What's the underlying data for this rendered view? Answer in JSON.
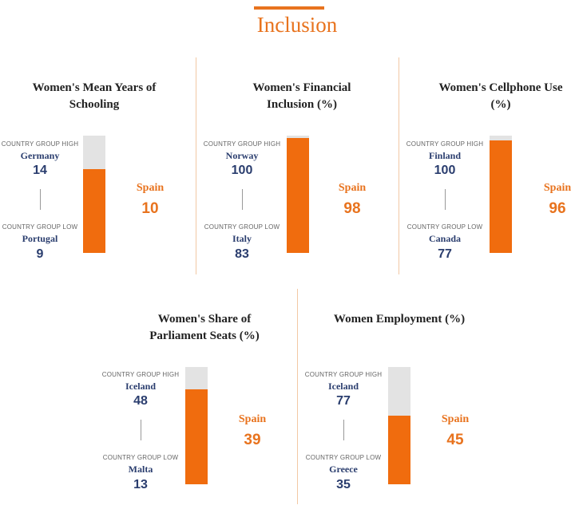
{
  "title": "Inclusion",
  "colors": {
    "accent": "#e8731e",
    "bar": "#f06c0e",
    "track": "#e3e3e3",
    "navy": "#2a3d6e"
  },
  "chart_data": [
    {
      "type": "bar",
      "title": "Women's Mean Years of Schooling",
      "high": {
        "label": "COUNTRY GROUP HIGH",
        "country": "Germany",
        "value": 14
      },
      "low": {
        "label": "COUNTRY GROUP LOW",
        "country": "Portugal",
        "value": 9
      },
      "spain": {
        "label": "Spain",
        "value": 10
      }
    },
    {
      "type": "bar",
      "title": "Women's Financial Inclusion (%)",
      "high": {
        "label": "COUNTRY GROUP HIGH",
        "country": "Norway",
        "value": 100
      },
      "low": {
        "label": "COUNTRY GROUP LOW",
        "country": "Italy",
        "value": 83
      },
      "spain": {
        "label": "Spain",
        "value": 98
      }
    },
    {
      "type": "bar",
      "title": "Women's Cellphone Use (%)",
      "high": {
        "label": "COUNTRY GROUP HIGH",
        "country": "Finland",
        "value": 100
      },
      "low": {
        "label": "COUNTRY GROUP LOW",
        "country": "Canada",
        "value": 77
      },
      "spain": {
        "label": "Spain",
        "value": 96
      }
    },
    {
      "type": "bar",
      "title": "Women's Share of Parliament Seats (%)",
      "high": {
        "label": "COUNTRY GROUP HIGH",
        "country": "Iceland",
        "value": 48
      },
      "low": {
        "label": "COUNTRY GROUP LOW",
        "country": "Malta",
        "value": 13
      },
      "spain": {
        "label": "Spain",
        "value": 39
      }
    },
    {
      "type": "bar",
      "title": "Women Employment (%)",
      "high": {
        "label": "COUNTRY GROUP HIGH",
        "country": "Iceland",
        "value": 77
      },
      "low": {
        "label": "COUNTRY GROUP LOW",
        "country": "Greece",
        "value": 35
      },
      "spain": {
        "label": "Spain",
        "value": 45
      }
    }
  ]
}
